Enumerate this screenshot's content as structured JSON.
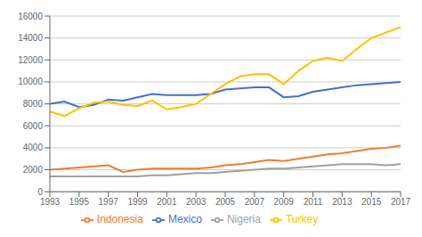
{
  "chart_data": {
    "type": "line",
    "x": [
      1993,
      1994,
      1995,
      1996,
      1997,
      1998,
      1999,
      2000,
      2001,
      2002,
      2003,
      2004,
      2005,
      2006,
      2007,
      2008,
      2009,
      2010,
      2011,
      2012,
      2013,
      2014,
      2015,
      2016,
      2017
    ],
    "series": [
      {
        "name": "Mexico",
        "color": "#4472c4",
        "values": [
          8000,
          8200,
          7700,
          7900,
          8400,
          8300,
          8600,
          8900,
          8800,
          8800,
          8800,
          8900,
          9300,
          9400,
          9500,
          9500,
          8600,
          8700,
          9100,
          9300,
          9500,
          9700,
          9800,
          9900,
          10000
        ]
      },
      {
        "name": "Indonesia",
        "color": "#ed7d31",
        "values": [
          2000,
          2100,
          2200,
          2300,
          2400,
          1800,
          2000,
          2100,
          2100,
          2100,
          2100,
          2200,
          2400,
          2500,
          2700,
          2900,
          2800,
          3000,
          3200,
          3400,
          3500,
          3700,
          3900,
          4000,
          4200
        ]
      },
      {
        "name": "Nigeria",
        "color": "#a0a0a0",
        "values": [
          1400,
          1400,
          1400,
          1400,
          1400,
          1400,
          1400,
          1500,
          1500,
          1600,
          1700,
          1700,
          1800,
          1900,
          2000,
          2100,
          2100,
          2200,
          2300,
          2400,
          2500,
          2500,
          2500,
          2400,
          2500
        ]
      },
      {
        "name": "Turkey",
        "color": "#ffc000",
        "values": [
          7300,
          6900,
          7600,
          8100,
          8200,
          7900,
          7800,
          8300,
          7500,
          7700,
          8000,
          8900,
          9800,
          10500,
          10700,
          10700,
          9800,
          11000,
          11900,
          12200,
          11900,
          13000,
          14000,
          14500,
          15000
        ]
      }
    ],
    "xlim": [
      1993,
      2017
    ],
    "xticks": [
      1993,
      1995,
      1997,
      1999,
      2001,
      2003,
      2005,
      2007,
      2009,
      2011,
      2013,
      2015,
      2017
    ],
    "ylim": [
      0,
      16000
    ],
    "yticks": [
      0,
      2000,
      4000,
      6000,
      8000,
      10000,
      12000,
      14000,
      16000
    ],
    "grid": true,
    "legend": "bottom"
  }
}
